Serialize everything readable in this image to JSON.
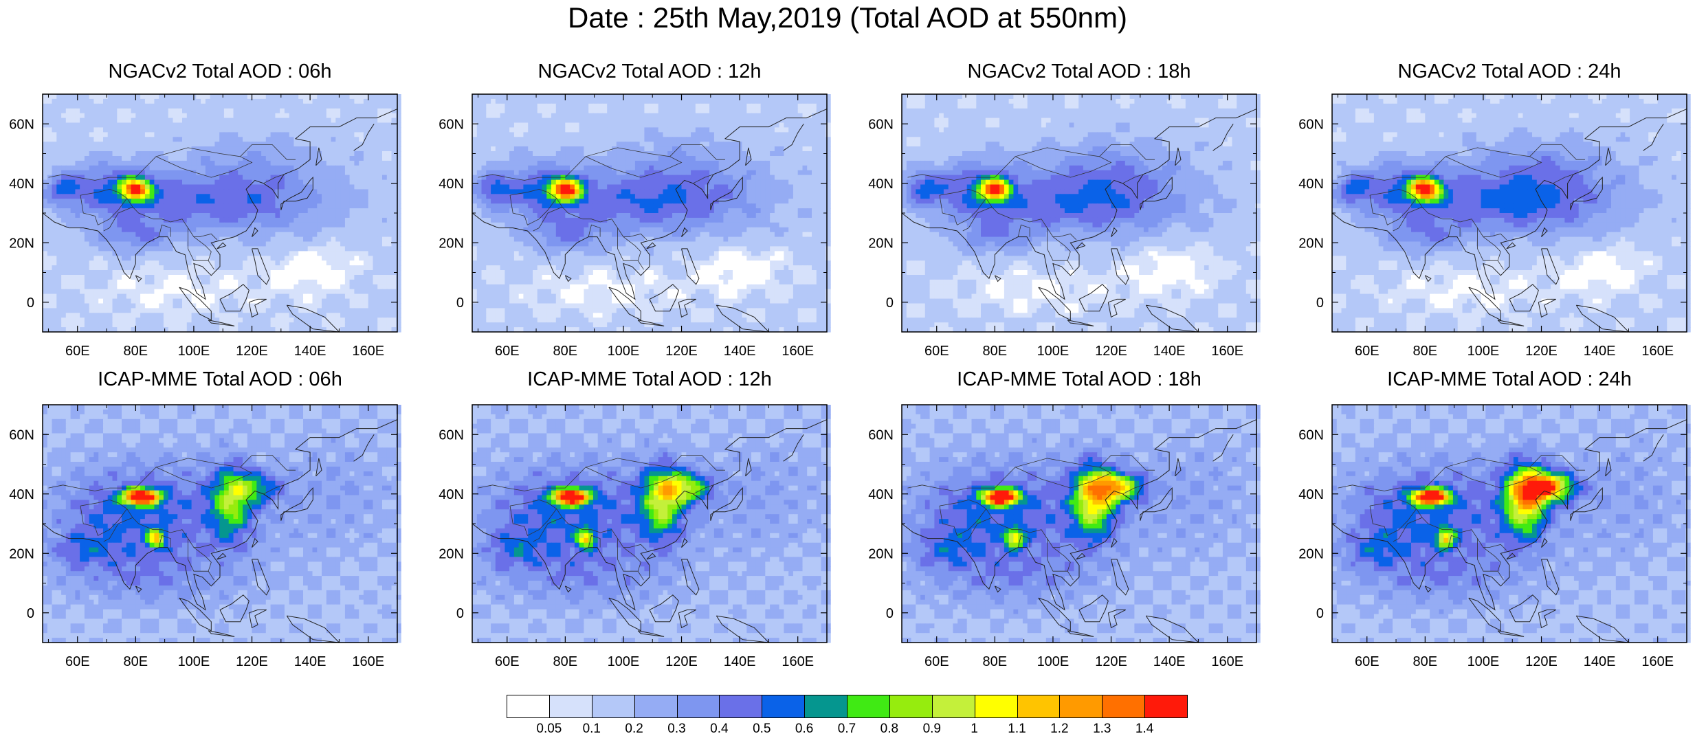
{
  "title": "Date : 25th May,2019 (Total AOD at 550nm)",
  "panels": [
    {
      "title": "NGACv2 Total AOD : 06h",
      "model": "ngac",
      "hour": "06h",
      "variant": 0
    },
    {
      "title": "NGACv2 Total AOD : 12h",
      "model": "ngac",
      "hour": "12h",
      "variant": 1
    },
    {
      "title": "NGACv2 Total AOD : 18h",
      "model": "ngac",
      "hour": "18h",
      "variant": 2
    },
    {
      "title": "NGACv2 Total AOD : 24h",
      "model": "ngac",
      "hour": "24h",
      "variant": 3
    },
    {
      "title": "ICAP-MME Total AOD : 06h",
      "model": "icap",
      "hour": "06h",
      "variant": 0
    },
    {
      "title": "ICAP-MME Total AOD : 12h",
      "model": "icap",
      "hour": "12h",
      "variant": 1
    },
    {
      "title": "ICAP-MME Total AOD : 18h",
      "model": "icap",
      "hour": "18h",
      "variant": 2
    },
    {
      "title": "ICAP-MME Total AOD : 24h",
      "model": "icap",
      "hour": "24h",
      "variant": 3
    }
  ],
  "map": {
    "lon_range": [
      48,
      170
    ],
    "lat_range": [
      -10,
      70
    ],
    "lon_ticks": [
      "60E",
      "80E",
      "100E",
      "120E",
      "140E",
      "160E"
    ],
    "lat_ticks": [
      "60N",
      "40N",
      "20N",
      "0"
    ]
  },
  "colorbar": {
    "labels": [
      "0.05",
      "0.1",
      "0.2",
      "0.3",
      "0.4",
      "0.5",
      "0.6",
      "0.7",
      "0.8",
      "0.9",
      "1",
      "1.1",
      "1.2",
      "1.3",
      "1.4"
    ],
    "colors": [
      "#ffffff",
      "#d6e1fb",
      "#b4c8f8",
      "#95acf4",
      "#7e96f0",
      "#6a70e8",
      "#0a62e8",
      "#05968f",
      "#40ea14",
      "#96ec0e",
      "#c4f03a",
      "#ffff00",
      "#ffc400",
      "#ff9a00",
      "#ff7000",
      "#ff1a0a"
    ]
  }
}
